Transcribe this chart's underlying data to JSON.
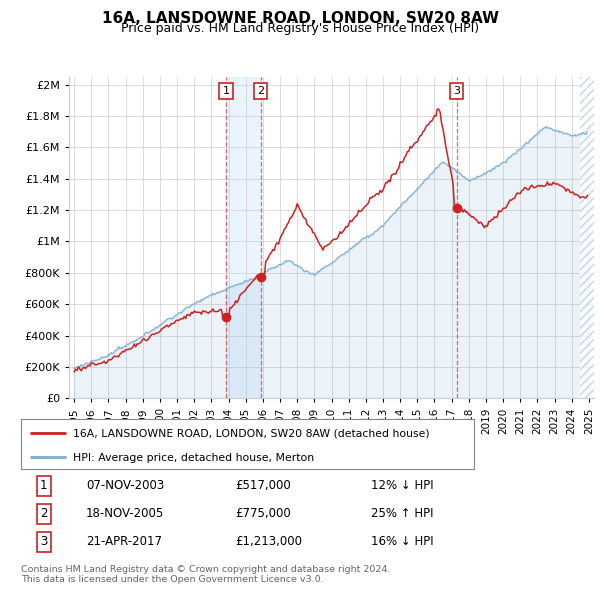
{
  "title": "16A, LANSDOWNE ROAD, LONDON, SW20 8AW",
  "subtitle": "Price paid vs. HM Land Registry's House Price Index (HPI)",
  "transactions": [
    {
      "num": 1,
      "date": "07-NOV-2003",
      "price": 517000,
      "year": 2003.85,
      "hpi_rel": "12% ↓ HPI"
    },
    {
      "num": 2,
      "date": "18-NOV-2005",
      "price": 775000,
      "year": 2005.88,
      "hpi_rel": "25% ↑ HPI"
    },
    {
      "num": 3,
      "date": "21-APR-2017",
      "price": 1213000,
      "year": 2017.3,
      "hpi_rel": "16% ↓ HPI"
    }
  ],
  "legend_line1": "16A, LANSDOWNE ROAD, LONDON, SW20 8AW (detached house)",
  "legend_line2": "HPI: Average price, detached house, Merton",
  "footer1": "Contains HM Land Registry data © Crown copyright and database right 2024.",
  "footer2": "This data is licensed under the Open Government Licence v3.0.",
  "price_line_color": "#cc2222",
  "hpi_line_color": "#7aadd4",
  "hpi_fill_color": "#ddeeff",
  "chart_bg": "#f5f5f5",
  "yticks": [
    0,
    200000,
    400000,
    600000,
    800000,
    1000000,
    1200000,
    1400000,
    1600000,
    1800000,
    2000000
  ],
  "ylim": [
    0,
    2050000
  ],
  "xlim_start": 1994.7,
  "xlim_end": 2025.3
}
